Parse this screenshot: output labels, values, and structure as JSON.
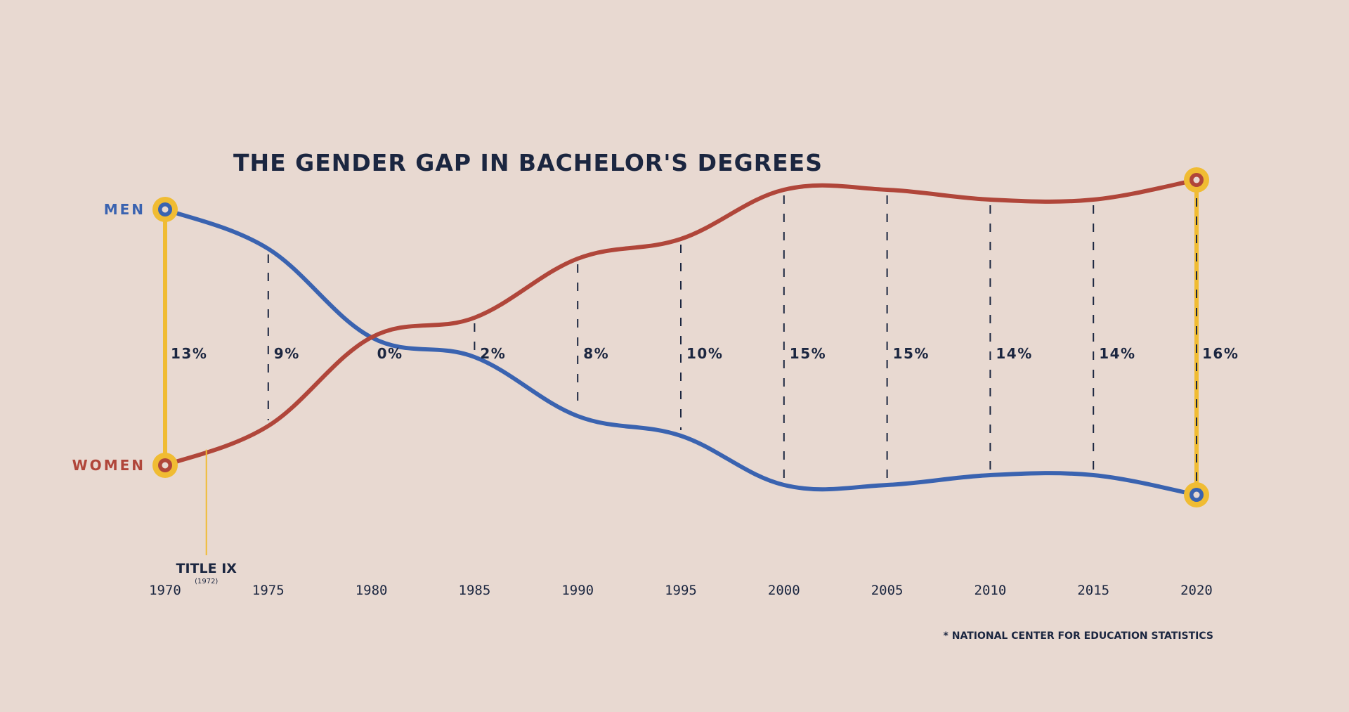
{
  "chart_data": {
    "type": "line",
    "title": "THE GENDER GAP IN BACHELOR'S DEGREES",
    "x": [
      1970,
      1975,
      1980,
      1985,
      1990,
      1995,
      2000,
      2005,
      2010,
      2015,
      2020
    ],
    "tick_labels": [
      "1970",
      "1975",
      "1980",
      "1985",
      "1990",
      "1995",
      "2000",
      "2005",
      "2010",
      "2015",
      "2020"
    ],
    "gap_labels": [
      "13%",
      "9%",
      "0%",
      "2%",
      "8%",
      "10%",
      "15%",
      "15%",
      "14%",
      "14%",
      "16%"
    ],
    "gap_values": [
      13,
      9,
      0,
      2,
      8,
      10,
      15,
      15,
      14,
      14,
      16
    ],
    "series": [
      {
        "name": "MEN",
        "color": "#3a63b0",
        "values": [
          56.5,
          54.5,
          50,
          49,
          46,
          45,
          42.5,
          42.5,
          43,
          43,
          42
        ]
      },
      {
        "name": "WOMEN",
        "color": "#b0463a",
        "values": [
          43.5,
          45.5,
          50,
          51,
          54,
          55,
          57.5,
          57.5,
          57,
          57,
          58
        ]
      }
    ],
    "highlight_color": "#f0bc33",
    "annotation": {
      "label": "TITLE IX",
      "sublabel": "(1972)",
      "x": 1972
    },
    "source": "* NATIONAL CENTER FOR EDUCATION STATISTICS",
    "ylim": [
      40,
      60
    ],
    "grid": false,
    "legend": "left"
  }
}
